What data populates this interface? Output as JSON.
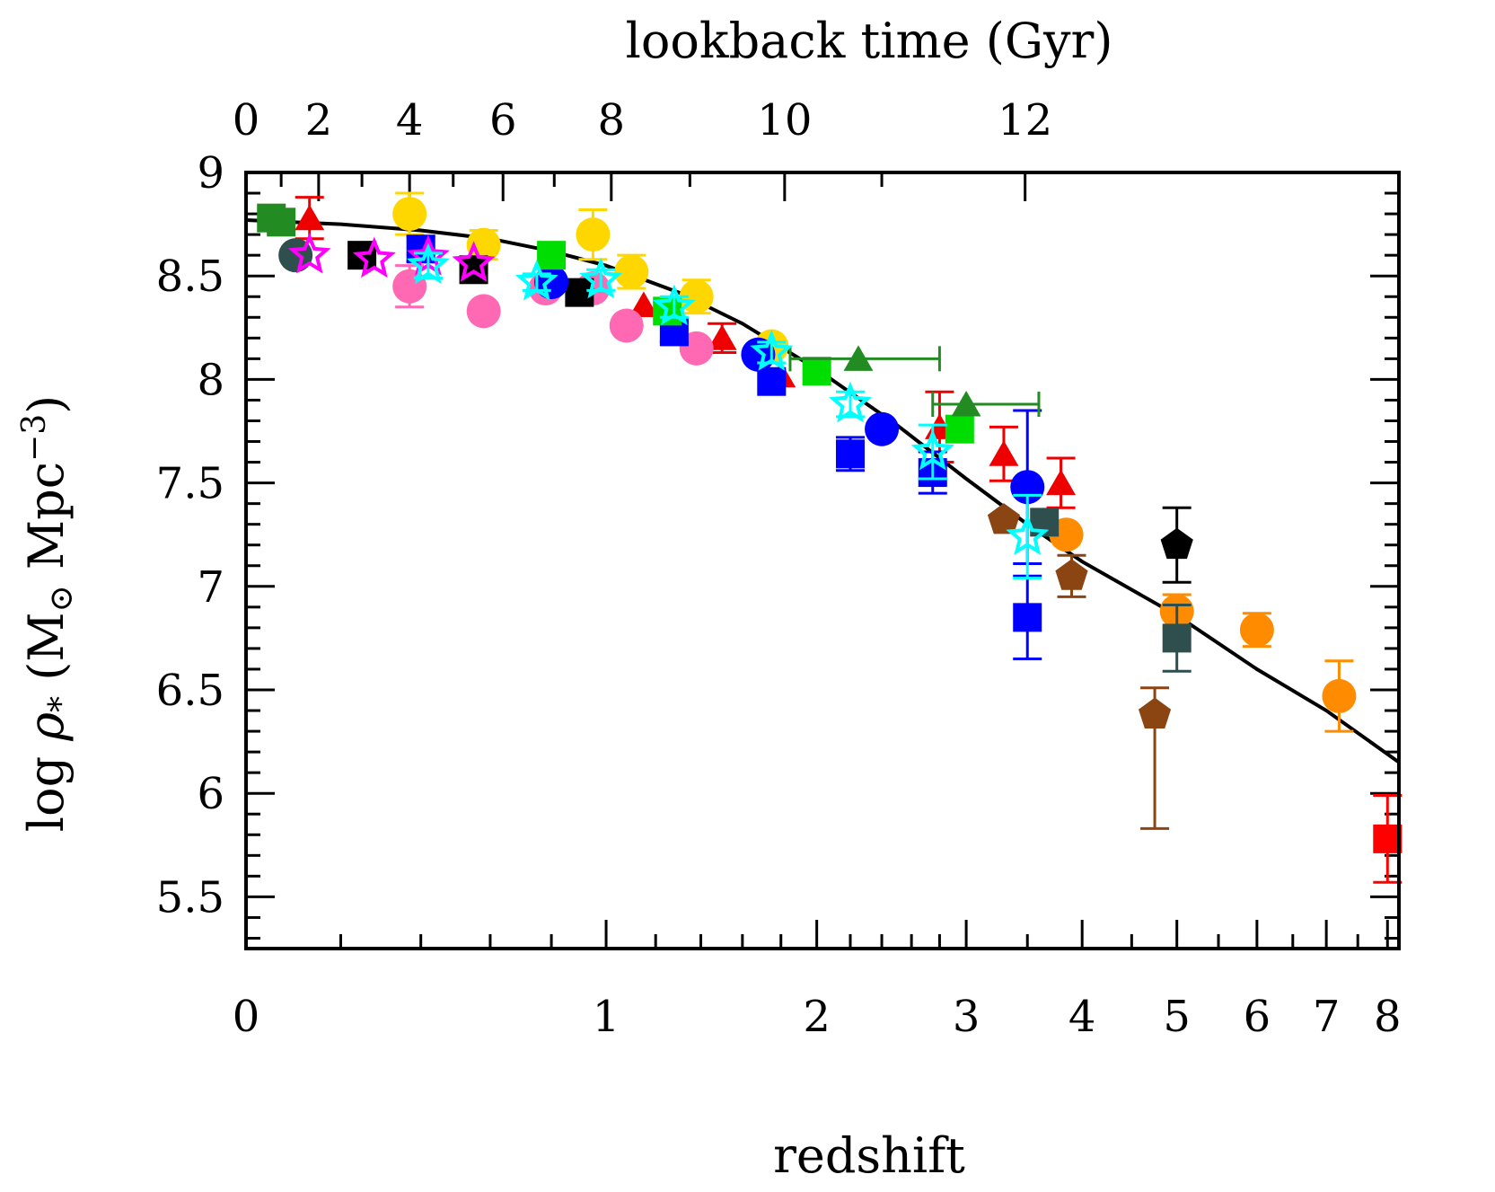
{
  "chart_data": {
    "type": "scatter",
    "xlabel": "redshift",
    "x2label": "lookback time (Gyr)",
    "ylabel_parts": [
      "log ",
      "ρ",
      "*",
      " (M",
      "⊙",
      " Mpc",
      "−3",
      ")"
    ],
    "xscale": "log(1+z)",
    "xlim": [
      0,
      8.2
    ],
    "ylim": [
      5.25,
      9
    ],
    "x_ticks": [
      0,
      1,
      2,
      3,
      4,
      5,
      6,
      7,
      8
    ],
    "x_tick_labels": [
      "0",
      "1",
      "2",
      "3",
      "4",
      "5",
      "6",
      "7",
      "8"
    ],
    "y_ticks": [
      5.5,
      6,
      6.5,
      7,
      7.5,
      8,
      8.5,
      9
    ],
    "y_tick_labels": [
      "5.5",
      "6",
      "6.5",
      "7",
      "7.5",
      "8",
      "8.5",
      "9"
    ],
    "top_ticks_gyr": [
      0,
      2,
      4,
      6,
      8,
      10,
      12
    ],
    "top_tick_labels": [
      "0",
      "2",
      "4",
      "6",
      "8",
      "10",
      "12"
    ],
    "top_tick_redshift": [
      0,
      0.15,
      0.37,
      0.64,
      1.02,
      1.82,
      3.48
    ],
    "grid": false,
    "legend": "none",
    "curve": {
      "name": "",
      "color": "#000000",
      "x": [
        0,
        0.2,
        0.4,
        0.6,
        0.8,
        1.0,
        1.3,
        1.6,
        2.0,
        2.5,
        3.0,
        3.5,
        4.0,
        5.0,
        6.0,
        7.0,
        8.2
      ],
      "y": [
        8.77,
        8.75,
        8.72,
        8.68,
        8.62,
        8.55,
        8.42,
        8.27,
        8.05,
        7.78,
        7.52,
        7.3,
        7.12,
        6.86,
        6.6,
        6.4,
        6.15
      ]
    },
    "series": [
      {
        "marker": "square",
        "color": "#228b22",
        "points": [
          {
            "x": 0.05,
            "y": 8.78
          },
          {
            "x": 0.07,
            "y": 8.76
          }
        ]
      },
      {
        "marker": "triangle",
        "color": "#ee0000",
        "points": [
          {
            "x": 0.13,
            "y": 8.78,
            "yerr": 0.1
          },
          {
            "x": 1.15,
            "y": 8.36
          },
          {
            "x": 1.5,
            "y": 8.2,
            "yerr": 0.07
          },
          {
            "x": 1.8,
            "y": 8.02
          },
          {
            "x": 2.8,
            "y": 7.77,
            "yerr": 0.17
          },
          {
            "x": 3.3,
            "y": 7.64,
            "yerr": 0.13
          },
          {
            "x": 3.8,
            "y": 7.5,
            "yerr": 0.12
          }
        ]
      },
      {
        "marker": "circle",
        "color": "#2f4f4f",
        "points": [
          {
            "x": 0.1,
            "y": 8.6
          }
        ]
      },
      {
        "marker": "circle",
        "color": "#ffd700",
        "points": [
          {
            "x": 0.37,
            "y": 8.8,
            "yerr": 0.1
          },
          {
            "x": 0.58,
            "y": 8.65,
            "yerr": 0.07
          },
          {
            "x": 0.95,
            "y": 8.7,
            "yerr": 0.12
          },
          {
            "x": 1.1,
            "y": 8.52,
            "yerr": 0.08
          },
          {
            "x": 1.38,
            "y": 8.4,
            "yerr": 0.08
          },
          {
            "x": 1.75,
            "y": 8.16
          }
        ]
      },
      {
        "marker": "circle",
        "color": "#ff69b4",
        "points": [
          {
            "x": 0.37,
            "y": 8.45,
            "yerr": 0.1
          },
          {
            "x": 0.58,
            "y": 8.33
          },
          {
            "x": 0.78,
            "y": 8.44
          },
          {
            "x": 0.95,
            "y": 8.44
          },
          {
            "x": 1.08,
            "y": 8.26
          },
          {
            "x": 1.38,
            "y": 8.15
          }
        ]
      },
      {
        "marker": "square",
        "color": "#000000",
        "points": [
          {
            "x": 0.25,
            "y": 8.6
          },
          {
            "x": 0.55,
            "y": 8.53
          },
          {
            "x": 0.9,
            "y": 8.42
          }
        ]
      },
      {
        "marker": "square",
        "color": "#0000ff",
        "points": [
          {
            "x": 0.4,
            "y": 8.63,
            "yerr": 0.06
          },
          {
            "x": 1.28,
            "y": 8.23,
            "yerr": 0.05
          },
          {
            "x": 1.75,
            "y": 7.99
          },
          {
            "x": 2.2,
            "y": 7.64,
            "yerr": 0.08
          },
          {
            "x": 2.75,
            "y": 7.55,
            "yerr": 0.1
          },
          {
            "x": 3.5,
            "y": 6.85,
            "yerr": 0.2
          }
        ]
      },
      {
        "marker": "circle",
        "color": "#0000ff",
        "points": [
          {
            "x": 0.8,
            "y": 8.47
          },
          {
            "x": 1.68,
            "y": 8.12
          },
          {
            "x": 2.4,
            "y": 7.76
          },
          {
            "x": 3.5,
            "y": 7.48,
            "yerr": 0.37
          }
        ]
      },
      {
        "marker": "square",
        "color": "#00dd00",
        "points": [
          {
            "x": 0.8,
            "y": 8.6
          },
          {
            "x": 1.25,
            "y": 8.33
          },
          {
            "x": 2.0,
            "y": 8.04
          },
          {
            "x": 2.95,
            "y": 7.76
          }
        ]
      },
      {
        "marker": "triangle",
        "color": "#228b22",
        "points": [
          {
            "x": 2.25,
            "y": 8.1,
            "xerr": [
              0.4,
              0.55
            ]
          },
          {
            "x": 3.0,
            "y": 7.88,
            "xerr": [
              0.25,
              0.6
            ]
          }
        ]
      },
      {
        "marker": "circle",
        "color": "#ff8c00",
        "points": [
          {
            "x": 3.85,
            "y": 7.25
          },
          {
            "x": 5.0,
            "y": 6.88,
            "yerr": 0.08
          },
          {
            "x": 6.0,
            "y": 6.79,
            "yerr": 0.08
          },
          {
            "x": 7.2,
            "y": 6.47,
            "yerr": 0.17
          }
        ]
      },
      {
        "marker": "pentagon",
        "color": "#8b4513",
        "points": [
          {
            "x": 3.3,
            "y": 7.32
          },
          {
            "x": 3.9,
            "y": 7.05,
            "yerr": 0.1
          },
          {
            "x": 4.75,
            "y": 6.38,
            "yerr": [
              0.55,
              0.13
            ]
          }
        ]
      },
      {
        "marker": "pentagon",
        "color": "#000000",
        "points": [
          {
            "x": 5.0,
            "y": 7.2,
            "yerr": 0.18
          }
        ]
      },
      {
        "marker": "square",
        "color": "#2f4f4f",
        "points": [
          {
            "x": 3.65,
            "y": 7.31
          },
          {
            "x": 5.0,
            "y": 6.75,
            "yerr": 0.16
          }
        ]
      },
      {
        "marker": "square",
        "color": "#ff0000",
        "points": [
          {
            "x": 8.0,
            "y": 5.78,
            "yerr": 0.21
          }
        ]
      },
      {
        "marker": "star-open",
        "color": "#ff00ff",
        "points": [
          {
            "x": 0.13,
            "y": 8.6
          },
          {
            "x": 0.28,
            "y": 8.58
          },
          {
            "x": 0.42,
            "y": 8.59
          },
          {
            "x": 0.55,
            "y": 8.56
          }
        ]
      },
      {
        "marker": "star-open",
        "color": "#00ffff",
        "points": [
          {
            "x": 0.42,
            "y": 8.55,
            "yerr": 0.06
          },
          {
            "x": 0.75,
            "y": 8.47,
            "yerr": 0.04
          },
          {
            "x": 0.98,
            "y": 8.48,
            "yerr": 0.05
          },
          {
            "x": 1.28,
            "y": 8.35,
            "yerr": 0.05
          },
          {
            "x": 1.75,
            "y": 8.13,
            "yerr": 0.05
          },
          {
            "x": 2.2,
            "y": 7.88,
            "yerr": 0.06
          },
          {
            "x": 2.75,
            "y": 7.65,
            "yerr": 0.13
          },
          {
            "x": 3.5,
            "y": 7.24,
            "yerr": 0.2
          }
        ]
      }
    ]
  }
}
